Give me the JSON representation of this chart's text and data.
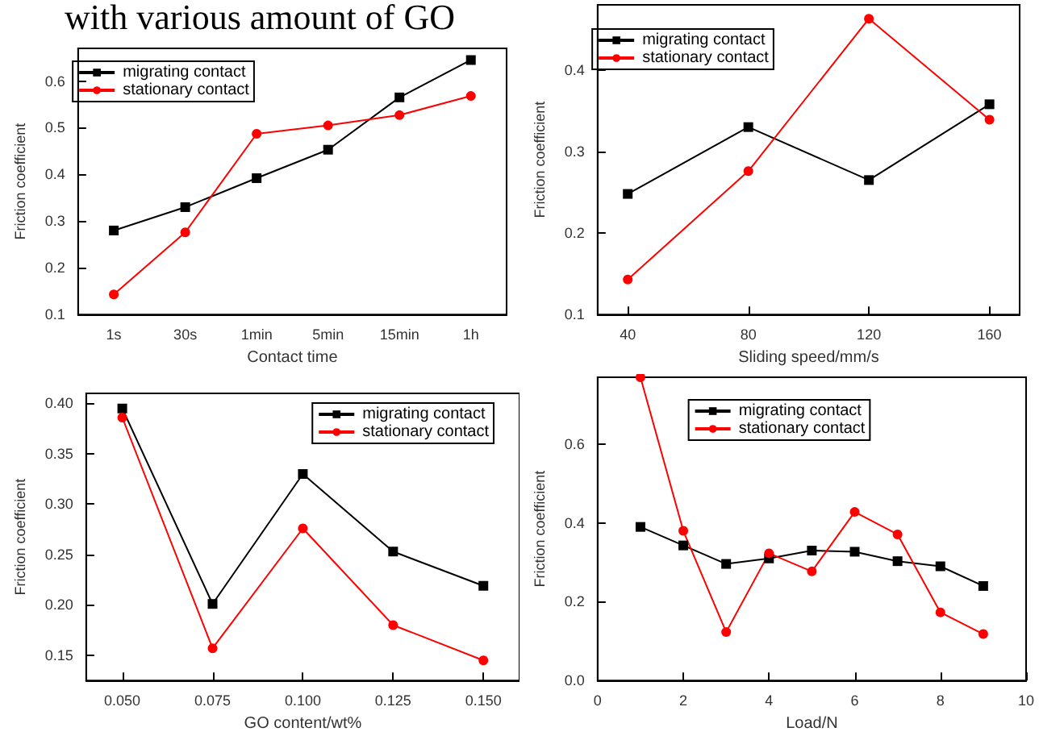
{
  "chart_data": [
    {
      "type": "line",
      "title": "with various amount of GO",
      "xlabel": "Contact time",
      "ylabel": "Friction coefficient",
      "categories": [
        "1s",
        "30s",
        "1min",
        "5min",
        "15min",
        "1h"
      ],
      "ylim": [
        0.1,
        0.67
      ],
      "yticks": [
        0.1,
        0.2,
        0.3,
        0.4,
        0.5,
        0.6
      ],
      "grid": false,
      "legend": "top left",
      "series": [
        {
          "name": "migrating contact",
          "color": "#000000",
          "marker": "square",
          "values": [
            0.28,
            0.33,
            0.392,
            0.453,
            0.565,
            0.645
          ]
        },
        {
          "name": "stationary contact",
          "color": "#ff0000",
          "marker": "circle",
          "values": [
            0.143,
            0.276,
            0.487,
            0.505,
            0.527,
            0.568
          ]
        }
      ]
    },
    {
      "type": "line",
      "xlabel": "Sliding speed/mm/s",
      "ylabel": "Friction coefficient",
      "x": [
        40,
        80,
        120,
        160
      ],
      "xlim": [
        30,
        170
      ],
      "xticks": [
        40,
        80,
        120,
        160
      ],
      "ylim": [
        0.1,
        0.48
      ],
      "yticks": [
        0.1,
        0.2,
        0.3,
        0.4
      ],
      "grid": false,
      "legend": "top left",
      "series": [
        {
          "name": "migrating contact",
          "color": "#000000",
          "marker": "square",
          "values": [
            0.248,
            0.33,
            0.265,
            0.358
          ]
        },
        {
          "name": "stationary contact",
          "color": "#ff0000",
          "marker": "circle",
          "values": [
            0.143,
            0.276,
            0.463,
            0.339
          ]
        }
      ]
    },
    {
      "type": "line",
      "xlabel": "GO content/wt%",
      "ylabel": "Friction coefficient",
      "x": [
        0.05,
        0.075,
        0.1,
        0.125,
        0.15
      ],
      "xlim": [
        0.04,
        0.16
      ],
      "xticks": [
        {
          "value": 0.05,
          "label": "0.050"
        },
        {
          "value": 0.075,
          "label": "0.075"
        },
        {
          "value": 0.1,
          "label": "0.100"
        },
        {
          "value": 0.125,
          "label": "0.125"
        },
        {
          "value": 0.15,
          "label": "0.150"
        }
      ],
      "ylim": [
        0.125,
        0.41
      ],
      "yticks": [
        {
          "value": 0.15,
          "label": "0.15"
        },
        {
          "value": 0.2,
          "label": "0.20"
        },
        {
          "value": 0.25,
          "label": "0.25"
        },
        {
          "value": 0.3,
          "label": "0.30"
        },
        {
          "value": 0.35,
          "label": "0.35"
        },
        {
          "value": 0.4,
          "label": "0.40"
        }
      ],
      "grid": false,
      "legend": "top right",
      "series": [
        {
          "name": "migrating contact",
          "color": "#000000",
          "marker": "square",
          "values": [
            0.395,
            0.201,
            0.33,
            0.253,
            0.219
          ]
        },
        {
          "name": "stationary contact",
          "color": "#ff0000",
          "marker": "circle",
          "values": [
            0.386,
            0.157,
            0.276,
            0.18,
            0.145
          ]
        }
      ]
    },
    {
      "type": "line",
      "xlabel": "Load/N",
      "ylabel": "Friction coefficient",
      "x": [
        1,
        2,
        3,
        4,
        5,
        6,
        7,
        8,
        9
      ],
      "xlim": [
        0,
        10
      ],
      "xticks": [
        0,
        2,
        4,
        6,
        8,
        10
      ],
      "ylim": [
        0,
        0.77
      ],
      "yticks": [
        {
          "value": 0,
          "label": "0.0"
        },
        0.2,
        0.4,
        0.6
      ],
      "grid": false,
      "legend": "top",
      "series": [
        {
          "name": "migrating contact",
          "color": "#000000",
          "marker": "square",
          "values": [
            0.39,
            0.343,
            0.296,
            0.31,
            0.33,
            0.327,
            0.303,
            0.29,
            0.24
          ]
        },
        {
          "name": "stationary contact",
          "color": "#ff0000",
          "marker": "circle",
          "values": [
            0.77,
            0.38,
            0.123,
            0.323,
            0.277,
            0.428,
            0.371,
            0.173,
            0.118
          ]
        }
      ]
    }
  ]
}
